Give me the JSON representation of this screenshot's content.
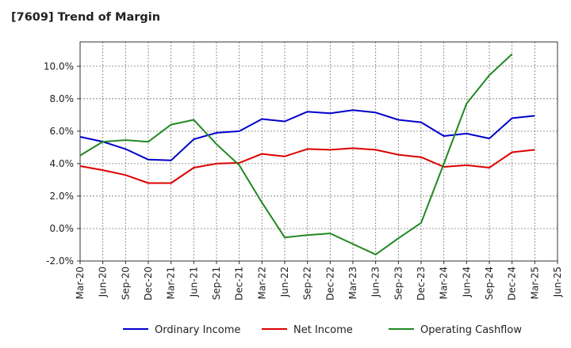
{
  "chart_data": {
    "type": "line",
    "title": "[7609]  Trend of Margin",
    "xlabel": "",
    "ylabel": "",
    "categories": [
      "Mar-20",
      "Jun-20",
      "Sep-20",
      "Dec-20",
      "Mar-21",
      "Jun-21",
      "Sep-21",
      "Dec-21",
      "Mar-22",
      "Jun-22",
      "Sep-22",
      "Dec-22",
      "Mar-23",
      "Jun-23",
      "Sep-23",
      "Dec-23",
      "Mar-24",
      "Jun-24",
      "Sep-24",
      "Dec-24",
      "Mar-25",
      "Jun-25"
    ],
    "ylim": [
      -2.0,
      11.5
    ],
    "yticks": [
      -2.0,
      0.0,
      2.0,
      4.0,
      6.0,
      8.0,
      10.0
    ],
    "ytick_labels": [
      "-2.0%",
      "0.0%",
      "2.0%",
      "4.0%",
      "6.0%",
      "8.0%",
      "10.0%"
    ],
    "grid": true,
    "legend_position": "bottom",
    "series": [
      {
        "name": "Ordinary Income",
        "color": "#0000cc",
        "values": [
          5.65,
          5.35,
          4.9,
          4.25,
          4.2,
          5.5,
          5.9,
          6.0,
          6.75,
          6.6,
          7.2,
          7.1,
          7.3,
          7.15,
          6.7,
          6.55,
          5.7,
          5.85,
          5.55,
          6.8,
          6.95,
          null
        ]
      },
      {
        "name": "Net Income",
        "color": "#dd0000",
        "values": [
          3.85,
          3.6,
          3.3,
          2.8,
          2.8,
          3.75,
          4.0,
          4.05,
          4.6,
          4.45,
          4.9,
          4.85,
          4.95,
          4.85,
          4.55,
          4.4,
          3.8,
          3.9,
          3.75,
          4.7,
          4.85,
          null
        ]
      },
      {
        "name": "Operating Cashflow",
        "color": "#228822",
        "values": [
          4.5,
          5.35,
          5.45,
          5.35,
          6.4,
          6.7,
          5.2,
          3.9,
          1.6,
          -0.55,
          -0.4,
          -0.3,
          -0.95,
          -1.6,
          -0.6,
          0.35,
          4.0,
          7.7,
          9.45,
          10.75,
          null,
          null
        ]
      }
    ]
  }
}
